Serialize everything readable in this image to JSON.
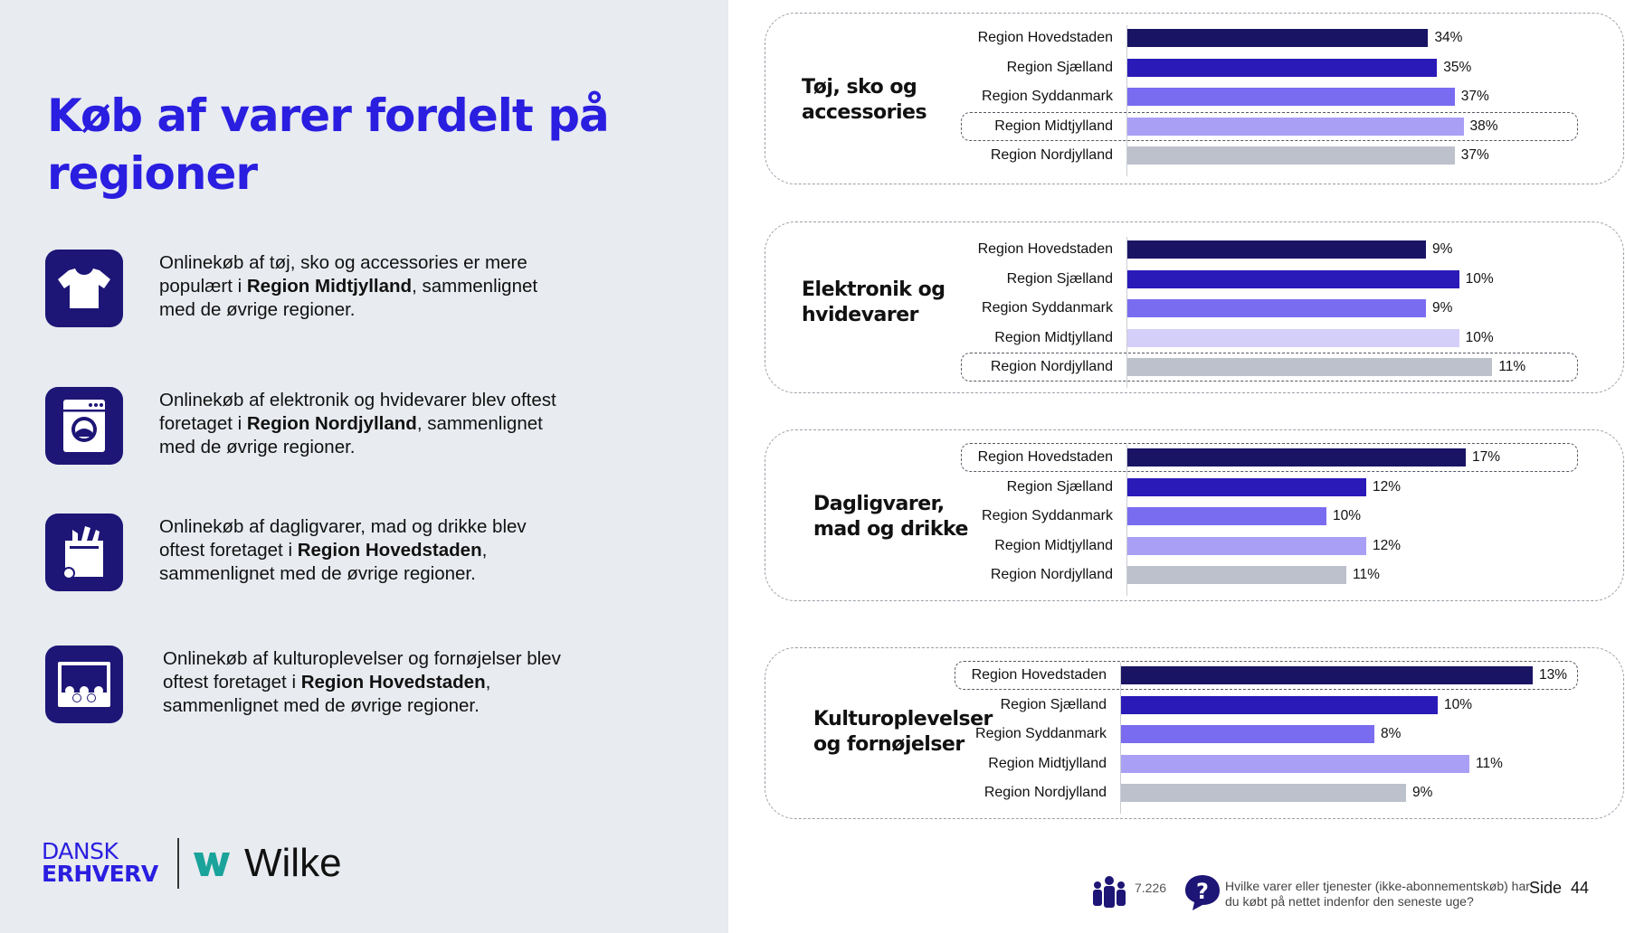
{
  "title": "Køb af varer fordelt på regioner",
  "insights": [
    {
      "icon": "tshirt-icon",
      "pre": "Onlinekøb af tøj, sko og accessories er mere populært i ",
      "bold": "Region Midtjylland",
      "post": ", sammenlignet med de øvrige regioner."
    },
    {
      "icon": "washing-machine-icon",
      "pre": "Onlinekøb af elektronik og hvidevarer blev oftest foretaget i ",
      "bold": "Region Nordjylland",
      "post": ", sammenlignet med de øvrige regioner."
    },
    {
      "icon": "grocery-bag-icon",
      "pre": "Onlinekøb af dagligvarer, mad og drikke blev oftest foretaget i ",
      "bold": "Region Hovedstaden",
      "post": ", sammenlignet med de øvrige regioner."
    },
    {
      "icon": "theater-audience-icon",
      "pre": "Onlinekøb af kulturoplevelser og fornøjelser blev oftest foretaget i ",
      "bold": "Region Hovedstaden",
      "post": ", sammenlignet med de øvrige regioner."
    }
  ],
  "logo": {
    "dansk": "DANSK",
    "erhverv": "ERHVERV",
    "wilke": "Wilke"
  },
  "colors": {
    "title": "#2a1ee0",
    "icon_bg": "#1d1676",
    "series": [
      "#1a1464",
      "#2a1ab8",
      "#7a6cf0",
      "#a99ff5",
      "#bcc1cc"
    ],
    "series_electronics_midt": "#d4cff9"
  },
  "chart_data": [
    {
      "type": "bar",
      "orientation": "horizontal",
      "title": "Tøj, sko og accessories",
      "categories": [
        "Region Hovedstaden",
        "Region Sjælland",
        "Region Syddanmark",
        "Region Midtjylland",
        "Region Nordjylland"
      ],
      "values": [
        34,
        35,
        37,
        38,
        37
      ],
      "labels": [
        "34%",
        "35%",
        "37%",
        "38%",
        "37%"
      ],
      "highlight": "Region Midtjylland",
      "xlim": [
        0,
        45
      ]
    },
    {
      "type": "bar",
      "orientation": "horizontal",
      "title": "Elektronik og hvidevarer",
      "categories": [
        "Region Hovedstaden",
        "Region Sjælland",
        "Region Syddanmark",
        "Region Midtjylland",
        "Region Nordjylland"
      ],
      "values": [
        9,
        10,
        9,
        10,
        11
      ],
      "labels": [
        "9%",
        "10%",
        "9%",
        "10%",
        "11%"
      ],
      "highlight": "Region Nordjylland",
      "xlim": [
        0,
        12
      ]
    },
    {
      "type": "bar",
      "orientation": "horizontal",
      "title": "Dagligvarer, mad og drikke",
      "categories": [
        "Region Hovedstaden",
        "Region Sjælland",
        "Region Syddanmark",
        "Region Midtjylland",
        "Region Nordjylland"
      ],
      "values": [
        17,
        12,
        10,
        12,
        11
      ],
      "labels": [
        "17%",
        "12%",
        "10%",
        "12%",
        "11%"
      ],
      "highlight": "Region Hovedstaden",
      "xlim": [
        0,
        20
      ]
    },
    {
      "type": "bar",
      "orientation": "horizontal",
      "title": "Kulturoplevelser og fornøjelser",
      "categories": [
        "Region Hovedstaden",
        "Region Sjælland",
        "Region Syddanmark",
        "Region Midtjylland",
        "Region Nordjylland"
      ],
      "values": [
        13,
        10,
        8,
        11,
        9
      ],
      "labels": [
        "13%",
        "10%",
        "8%",
        "11%",
        "9%"
      ],
      "highlight": "Region Hovedstaden",
      "xlim": [
        0,
        13
      ]
    }
  ],
  "footer": {
    "base_icon": "people-group-icon",
    "base_n": "7.226",
    "question_icon": "question-bubble-icon",
    "question": "Hvilke varer eller tjenester (ikke-abonnementskøb) har du købt på nettet indenfor den seneste uge?",
    "page_label": "Side",
    "page_number": "44"
  }
}
